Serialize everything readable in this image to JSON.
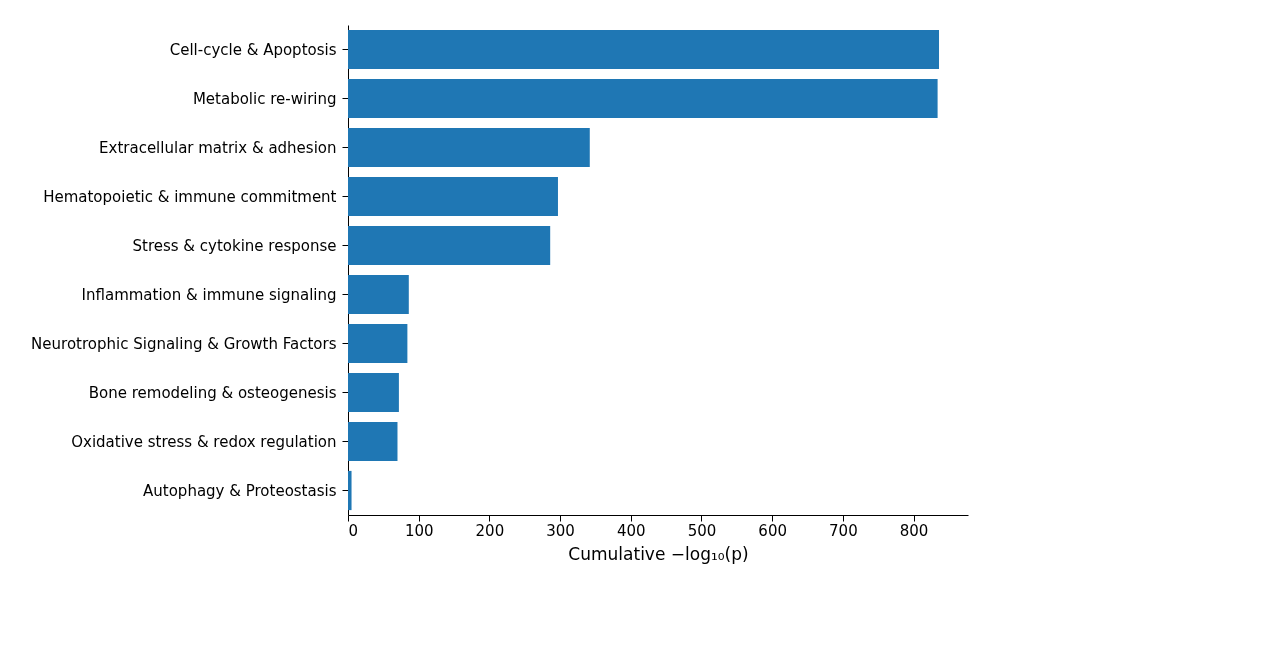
{
  "chart_data": {
    "type": "bar",
    "orientation": "horizontal",
    "xlabel": "Cumulative −log₁₀(p)",
    "categories": [
      "Cell-cycle & Apoptosis",
      "Metabolic re-wiring",
      "Extracellular matrix & adhesion",
      "Hematopoietic & immune commitment",
      "Stress & cytokine response",
      "Inflammation & immune signaling",
      "Neurotrophic Signaling & Growth Factors",
      "Bone remodeling & osteogenesis",
      "Oxidative stress & redox regulation",
      "Autophagy & Proteostasis"
    ],
    "values": [
      836,
      834,
      342,
      297,
      286,
      86,
      84,
      72,
      70,
      5
    ],
    "color": "#1f77b4",
    "xlim": [
      0,
      877
    ],
    "xticks": [
      0,
      100,
      200,
      300,
      400,
      500,
      600,
      700,
      800
    ],
    "grid": false
  }
}
